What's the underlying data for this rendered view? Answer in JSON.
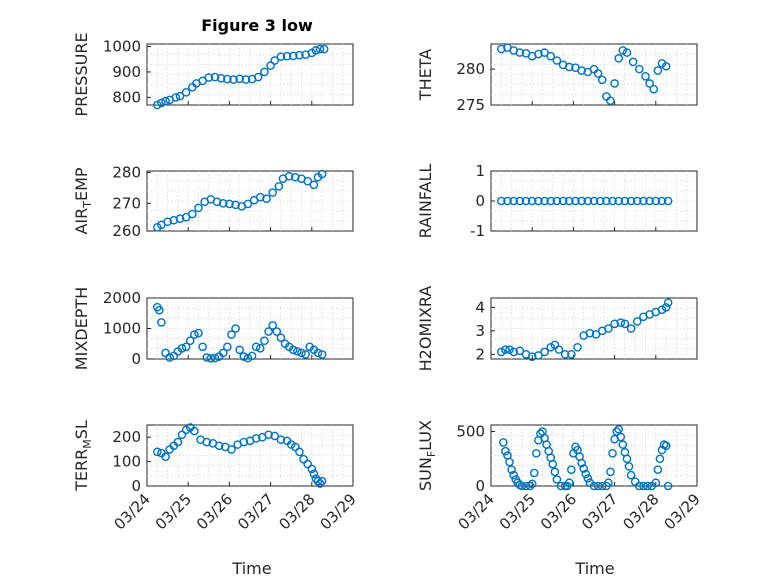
{
  "figure": {
    "title": "Figure 3 low",
    "xlabel": "Time"
  },
  "colors": {
    "marker": "#0072bd",
    "axis": "#262626",
    "grid": "#d9d9d9"
  },
  "chart_data": [
    {
      "type": "scatter",
      "ylabel": "PRESSURE",
      "ylabel_sub": "",
      "ylabel_end": "",
      "ylim": [
        770,
        1010
      ],
      "yticks": [
        800,
        900,
        1000
      ],
      "xlim": [
        0,
        5
      ],
      "grid": true,
      "show_xticks": false,
      "x": [
        0.25,
        0.35,
        0.45,
        0.55,
        0.7,
        0.8,
        0.95,
        1.1,
        1.2,
        1.35,
        1.5,
        1.65,
        1.8,
        1.95,
        2.1,
        2.25,
        2.4,
        2.55,
        2.7,
        2.85,
        3.0,
        3.1,
        3.25,
        3.4,
        3.55,
        3.7,
        3.85,
        4.0,
        4.1,
        4.2,
        4.3
      ],
      "y": [
        770,
        778,
        785,
        790,
        800,
        805,
        820,
        840,
        855,
        865,
        878,
        880,
        875,
        872,
        870,
        873,
        870,
        872,
        880,
        900,
        925,
        945,
        960,
        962,
        963,
        966,
        968,
        975,
        985,
        990,
        990
      ]
    },
    {
      "type": "scatter",
      "ylabel": "THETA",
      "ylabel_sub": "",
      "ylabel_end": "",
      "ylim": [
        275,
        283.5
      ],
      "yticks": [
        275,
        280
      ],
      "xlim": [
        0,
        5
      ],
      "grid": true,
      "show_xticks": false,
      "x": [
        0.25,
        0.4,
        0.55,
        0.7,
        0.85,
        1.0,
        1.15,
        1.3,
        1.45,
        1.6,
        1.75,
        1.9,
        2.05,
        2.2,
        2.35,
        2.5,
        2.6,
        2.7,
        2.8,
        2.9,
        3.0,
        3.1,
        3.2,
        3.3,
        3.45,
        3.6,
        3.75,
        3.85,
        3.95,
        4.05,
        4.15,
        4.25
      ],
      "y": [
        282.8,
        283.0,
        282.6,
        282.3,
        282.2,
        281.8,
        282.1,
        282.3,
        281.8,
        281.2,
        280.6,
        280.3,
        280.2,
        279.8,
        279.6,
        280.0,
        279.4,
        278.5,
        276.2,
        275.6,
        278.0,
        281.5,
        282.6,
        282.3,
        281.0,
        280.0,
        279.0,
        278.0,
        277.2,
        279.8,
        280.8,
        280.4
      ]
    },
    {
      "type": "scatter",
      "ylabel": "AIR",
      "ylabel_sub": "T",
      "ylabel_end": "EMP",
      "ylim": [
        261,
        280.5
      ],
      "yticks": [
        260,
        270,
        280
      ],
      "xlim": [
        0,
        5
      ],
      "grid": true,
      "show_xticks": false,
      "x": [
        0.25,
        0.35,
        0.5,
        0.65,
        0.8,
        0.95,
        1.1,
        1.25,
        1.4,
        1.55,
        1.7,
        1.85,
        2.0,
        2.15,
        2.3,
        2.45,
        2.6,
        2.75,
        2.9,
        3.05,
        3.2,
        3.3,
        3.45,
        3.6,
        3.75,
        3.9,
        4.05,
        4.15,
        4.25
      ],
      "y": [
        262.2,
        263.0,
        264.0,
        264.5,
        265.0,
        265.5,
        266.5,
        268.5,
        270.5,
        271.3,
        270.5,
        270.0,
        269.8,
        269.5,
        269.0,
        269.8,
        271.0,
        272.0,
        271.5,
        273.5,
        275.5,
        278.0,
        278.8,
        278.5,
        278.0,
        277.2,
        276.0,
        278.5,
        279.5
      ]
    },
    {
      "type": "scatter",
      "ylabel": "RAINFALL",
      "ylabel_sub": "",
      "ylabel_end": "",
      "ylim": [
        -1,
        1
      ],
      "yticks": [
        -1,
        0,
        1
      ],
      "xlim": [
        0,
        5
      ],
      "grid": true,
      "show_xticks": false,
      "x": [
        0.25,
        0.4,
        0.55,
        0.7,
        0.85,
        1.0,
        1.15,
        1.3,
        1.45,
        1.6,
        1.75,
        1.9,
        2.05,
        2.2,
        2.35,
        2.5,
        2.65,
        2.8,
        2.95,
        3.1,
        3.25,
        3.4,
        3.55,
        3.7,
        3.85,
        4.0,
        4.15,
        4.3
      ],
      "y": [
        0,
        0,
        0,
        0,
        0,
        0,
        0,
        0,
        0,
        0,
        0,
        0,
        0,
        0,
        0,
        0,
        0,
        0,
        0,
        0,
        0,
        0,
        0,
        0,
        0,
        0,
        0,
        0
      ]
    },
    {
      "type": "scatter",
      "ylabel": "MIXDEPTH",
      "ylabel_sub": "",
      "ylabel_end": "",
      "ylim": [
        0,
        2000
      ],
      "yticks": [
        0,
        1000,
        2000
      ],
      "xlim": [
        0,
        5
      ],
      "grid": true,
      "show_xticks": false,
      "x": [
        0.25,
        0.3,
        0.35,
        0.45,
        0.55,
        0.65,
        0.75,
        0.85,
        0.95,
        1.05,
        1.15,
        1.25,
        1.35,
        1.45,
        1.55,
        1.65,
        1.75,
        1.85,
        1.95,
        2.05,
        2.15,
        2.25,
        2.35,
        2.45,
        2.55,
        2.65,
        2.75,
        2.85,
        2.95,
        3.05,
        3.15,
        3.25,
        3.35,
        3.45,
        3.55,
        3.65,
        3.75,
        3.85,
        3.95,
        4.05,
        4.15,
        4.25
      ],
      "y": [
        1700,
        1600,
        1200,
        200,
        50,
        100,
        250,
        350,
        400,
        600,
        800,
        850,
        400,
        50,
        20,
        30,
        80,
        200,
        400,
        800,
        1000,
        300,
        80,
        30,
        100,
        400,
        350,
        600,
        900,
        1100,
        900,
        700,
        500,
        400,
        300,
        250,
        200,
        150,
        400,
        300,
        200,
        150
      ]
    },
    {
      "type": "scatter",
      "ylabel": "H2OMIXRA",
      "ylabel_sub": "",
      "ylabel_end": "",
      "ylim": [
        1.8,
        4.4
      ],
      "yticks": [
        2,
        3,
        4
      ],
      "xlim": [
        0,
        5
      ],
      "grid": true,
      "show_xticks": false,
      "x": [
        0.25,
        0.35,
        0.45,
        0.55,
        0.7,
        0.85,
        1.0,
        1.15,
        1.3,
        1.45,
        1.55,
        1.65,
        1.8,
        1.95,
        2.1,
        2.25,
        2.4,
        2.55,
        2.7,
        2.85,
        3.0,
        3.15,
        3.25,
        3.4,
        3.55,
        3.7,
        3.85,
        4.0,
        4.15,
        4.25,
        4.3
      ],
      "y": [
        2.1,
        2.2,
        2.2,
        2.1,
        2.15,
        2.0,
        1.9,
        1.95,
        2.1,
        2.3,
        2.4,
        2.2,
        2.0,
        2.0,
        2.3,
        2.8,
        2.9,
        2.85,
        3.0,
        3.1,
        3.3,
        3.35,
        3.3,
        3.1,
        3.4,
        3.6,
        3.7,
        3.8,
        3.9,
        4.0,
        4.2
      ]
    },
    {
      "type": "scatter",
      "ylabel": "TERR",
      "ylabel_sub": "M",
      "ylabel_end": "SL",
      "ylim": [
        0,
        250
      ],
      "yticks": [
        0,
        100,
        200
      ],
      "xlim": [
        0,
        5
      ],
      "grid": true,
      "show_xticks": true,
      "x": [
        0.25,
        0.35,
        0.45,
        0.55,
        0.65,
        0.75,
        0.85,
        0.95,
        1.05,
        1.15,
        1.3,
        1.45,
        1.6,
        1.75,
        1.9,
        2.05,
        2.2,
        2.35,
        2.5,
        2.65,
        2.8,
        2.95,
        3.1,
        3.25,
        3.4,
        3.5,
        3.6,
        3.7,
        3.8,
        3.9,
        4.0,
        4.05,
        4.1,
        4.15,
        4.2,
        4.25
      ],
      "y": [
        140,
        135,
        120,
        150,
        165,
        180,
        210,
        230,
        240,
        225,
        190,
        180,
        175,
        165,
        160,
        150,
        170,
        180,
        185,
        195,
        200,
        210,
        205,
        190,
        185,
        170,
        160,
        140,
        110,
        90,
        70,
        50,
        30,
        20,
        10,
        20
      ]
    },
    {
      "type": "scatter",
      "ylabel": "SUN",
      "ylabel_sub": "F",
      "ylabel_end": "LUX",
      "ylim": [
        0,
        560
      ],
      "yticks": [
        0,
        500
      ],
      "xlim": [
        0,
        5
      ],
      "grid": true,
      "show_xticks": true,
      "x": [
        0.3,
        0.35,
        0.4,
        0.45,
        0.5,
        0.55,
        0.6,
        0.65,
        0.7,
        0.75,
        0.85,
        0.95,
        1.0,
        1.05,
        1.1,
        1.15,
        1.2,
        1.25,
        1.3,
        1.35,
        1.4,
        1.45,
        1.5,
        1.55,
        1.6,
        1.7,
        1.8,
        1.85,
        1.9,
        1.95,
        2.0,
        2.05,
        2.1,
        2.15,
        2.2,
        2.25,
        2.3,
        2.35,
        2.4,
        2.5,
        2.6,
        2.7,
        2.8,
        2.85,
        2.9,
        2.95,
        3.0,
        3.05,
        3.1,
        3.15,
        3.2,
        3.25,
        3.3,
        3.35,
        3.4,
        3.5,
        3.6,
        3.7,
        3.8,
        3.9,
        4.0,
        4.05,
        4.1,
        4.15,
        4.2,
        4.25,
        4.3
      ],
      "y": [
        400,
        320,
        280,
        220,
        150,
        100,
        60,
        30,
        10,
        0,
        0,
        0,
        20,
        120,
        300,
        420,
        480,
        500,
        440,
        380,
        320,
        260,
        200,
        130,
        60,
        0,
        0,
        0,
        30,
        150,
        300,
        360,
        330,
        270,
        210,
        160,
        110,
        70,
        30,
        0,
        0,
        0,
        0,
        30,
        130,
        300,
        430,
        500,
        520,
        450,
        380,
        310,
        250,
        180,
        100,
        40,
        0,
        0,
        0,
        0,
        30,
        150,
        250,
        330,
        380,
        370,
        0
      ]
    }
  ],
  "x_tick_labels": [
    "03/24",
    "03/25",
    "03/26",
    "03/27",
    "03/28",
    "03/29"
  ]
}
